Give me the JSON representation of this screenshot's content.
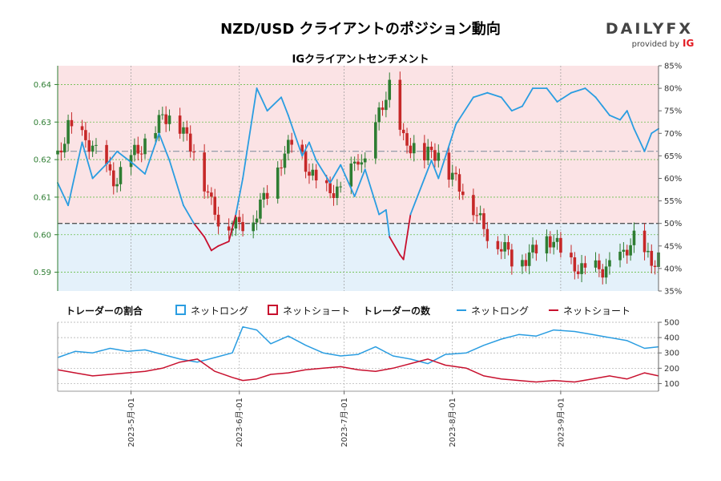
{
  "title": "NZD/USD クライアントのポジション動向",
  "subtitle": "IGクライアントセンチメント",
  "brand": {
    "name": "DAILYFX",
    "tagline": "provided by",
    "mark": "IG",
    "color": "#e31b23"
  },
  "legend": {
    "ratio_title": "トレーダーの割合",
    "count_title": "トレーダーの数",
    "net_long": "ネットロング",
    "net_short": "ネットショート"
  },
  "colors": {
    "long": "#2a9de1",
    "short": "#c8102e",
    "long_fill": "#e4f1fa",
    "short_fill": "#fbe3e5",
    "candle_up": "#2e7d32",
    "candle_down": "#c62828",
    "grid": "#6abf4b"
  },
  "chart_data": [
    {
      "type": "candlestick",
      "name": "price",
      "x_range": [
        "2023-04-10",
        "2023-09-29"
      ],
      "ylim": [
        0.585,
        0.645
      ],
      "yticks": [
        "0.59",
        "0.60",
        "0.61",
        "0.62",
        "0.63",
        "0.64"
      ],
      "secondary_ylim": [
        35,
        85
      ],
      "secondary_yticks": [
        "35%",
        "40%",
        "45%",
        "50%",
        "55%",
        "60%",
        "65%",
        "70%",
        "75%",
        "80%",
        "85%"
      ],
      "reference_lines": [
        50,
        66
      ],
      "close_anchors": {
        "dates": [
          "2023-04-10",
          "2023-04-13",
          "2023-04-20",
          "2023-04-27",
          "2023-05-04",
          "2023-05-10",
          "2023-05-15",
          "2023-05-19",
          "2023-05-24",
          "2023-05-26",
          "2023-06-01",
          "2023-06-05",
          "2023-06-08",
          "2023-06-13",
          "2023-06-16",
          "2023-06-20",
          "2023-06-26",
          "2023-06-30",
          "2023-07-05",
          "2023-07-07",
          "2023-07-11",
          "2023-07-14",
          "2023-07-18",
          "2023-07-24",
          "2023-07-28",
          "2023-08-03",
          "2023-08-08",
          "2023-08-14",
          "2023-08-18",
          "2023-08-24",
          "2023-08-30",
          "2023-09-05",
          "2023-09-08",
          "2023-09-14",
          "2023-09-19",
          "2023-09-22",
          "2023-09-27"
        ],
        "values": [
          0.62,
          0.63,
          0.622,
          0.615,
          0.623,
          0.632,
          0.628,
          0.624,
          0.607,
          0.603,
          0.604,
          0.603,
          0.609,
          0.621,
          0.624,
          0.618,
          0.612,
          0.61,
          0.622,
          0.619,
          0.631,
          0.639,
          0.626,
          0.62,
          0.623,
          0.612,
          0.606,
          0.597,
          0.593,
          0.596,
          0.598,
          0.592,
          0.589,
          0.592,
          0.594,
          0.598,
          0.594
        ]
      },
      "sentiment_net_long_pct": {
        "dates": [
          "2023-04-10",
          "2023-04-13",
          "2023-04-17",
          "2023-04-20",
          "2023-04-25",
          "2023-04-27",
          "2023-05-02",
          "2023-05-05",
          "2023-05-09",
          "2023-05-12",
          "2023-05-16",
          "2023-05-19",
          "2023-05-22",
          "2023-05-24",
          "2023-05-26",
          "2023-05-29",
          "2023-05-31",
          "2023-06-02",
          "2023-06-06",
          "2023-06-09",
          "2023-06-13",
          "2023-06-15",
          "2023-06-19",
          "2023-06-21",
          "2023-06-23",
          "2023-06-27",
          "2023-06-30",
          "2023-07-04",
          "2023-07-07",
          "2023-07-11",
          "2023-07-13",
          "2023-07-14",
          "2023-07-17",
          "2023-07-18",
          "2023-07-20",
          "2023-07-24",
          "2023-07-26",
          "2023-07-28",
          "2023-08-02",
          "2023-08-07",
          "2023-08-11",
          "2023-08-15",
          "2023-08-18",
          "2023-08-21",
          "2023-08-24",
          "2023-08-28",
          "2023-08-31",
          "2023-09-04",
          "2023-09-08",
          "2023-09-11",
          "2023-09-13",
          "2023-09-15",
          "2023-09-18",
          "2023-09-20",
          "2023-09-22",
          "2023-09-25",
          "2023-09-27",
          "2023-09-29"
        ],
        "values": [
          59,
          54,
          68,
          60,
          64,
          66,
          63,
          61,
          70,
          64,
          54,
          50,
          47,
          44,
          45,
          46,
          52,
          60,
          80,
          75,
          78,
          74,
          65,
          68,
          64,
          59,
          63,
          56,
          62,
          52,
          53,
          47,
          43,
          42,
          52,
          60,
          64,
          60,
          72,
          78,
          79,
          78,
          75,
          76,
          80,
          80,
          77,
          79,
          80,
          78,
          76,
          74,
          73,
          75,
          71,
          66,
          70,
          71
        ]
      }
    },
    {
      "type": "line",
      "name": "trader counts",
      "ylim": [
        50,
        500
      ],
      "yticks": [
        "100",
        "200",
        "300",
        "400",
        "500"
      ],
      "xticks": [
        "2023-5月-01",
        "2023-6月-01",
        "2023-7月-01",
        "2023-8月-01",
        "2023-9月-01"
      ],
      "xtick_dates": [
        "2023-05-01",
        "2023-06-01",
        "2023-07-01",
        "2023-08-01",
        "2023-09-01"
      ],
      "series": [
        {
          "name": "ネットロング",
          "dates": [
            "2023-04-10",
            "2023-04-15",
            "2023-04-20",
            "2023-04-25",
            "2023-04-30",
            "2023-05-05",
            "2023-05-10",
            "2023-05-15",
            "2023-05-20",
            "2023-05-25",
            "2023-05-30",
            "2023-06-02",
            "2023-06-06",
            "2023-06-10",
            "2023-06-15",
            "2023-06-20",
            "2023-06-25",
            "2023-06-30",
            "2023-07-05",
            "2023-07-10",
            "2023-07-15",
            "2023-07-20",
            "2023-07-25",
            "2023-07-30",
            "2023-08-05",
            "2023-08-10",
            "2023-08-15",
            "2023-08-20",
            "2023-08-25",
            "2023-08-30",
            "2023-09-05",
            "2023-09-10",
            "2023-09-15",
            "2023-09-20",
            "2023-09-25",
            "2023-09-29"
          ],
          "values": [
            270,
            310,
            300,
            330,
            310,
            320,
            290,
            260,
            240,
            270,
            300,
            470,
            450,
            360,
            410,
            350,
            300,
            280,
            290,
            340,
            280,
            260,
            230,
            290,
            300,
            350,
            390,
            420,
            410,
            450,
            440,
            420,
            400,
            380,
            330,
            340
          ]
        },
        {
          "name": "ネットショート",
          "dates": [
            "2023-04-10",
            "2023-04-15",
            "2023-04-20",
            "2023-04-25",
            "2023-04-30",
            "2023-05-05",
            "2023-05-10",
            "2023-05-15",
            "2023-05-20",
            "2023-05-25",
            "2023-05-30",
            "2023-06-02",
            "2023-06-06",
            "2023-06-10",
            "2023-06-15",
            "2023-06-20",
            "2023-06-25",
            "2023-06-30",
            "2023-07-05",
            "2023-07-10",
            "2023-07-15",
            "2023-07-20",
            "2023-07-25",
            "2023-07-30",
            "2023-08-05",
            "2023-08-10",
            "2023-08-15",
            "2023-08-20",
            "2023-08-25",
            "2023-08-30",
            "2023-09-05",
            "2023-09-10",
            "2023-09-15",
            "2023-09-20",
            "2023-09-25",
            "2023-09-29"
          ],
          "values": [
            190,
            170,
            150,
            160,
            170,
            180,
            200,
            240,
            260,
            180,
            140,
            120,
            130,
            160,
            170,
            190,
            200,
            210,
            190,
            180,
            200,
            230,
            260,
            220,
            200,
            150,
            130,
            120,
            110,
            120,
            110,
            130,
            150,
            130,
            170,
            150
          ]
        }
      ]
    }
  ]
}
